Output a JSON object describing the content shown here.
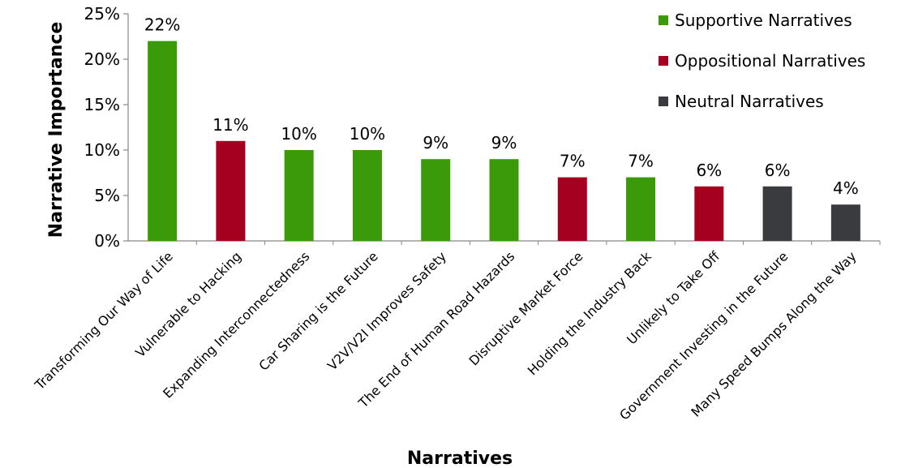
{
  "chart_data": {
    "type": "bar",
    "title": "",
    "xlabel": "Narratives",
    "ylabel": "Narrative Importance",
    "ylim": [
      0,
      25
    ],
    "yticks": [
      0,
      5,
      10,
      15,
      20,
      25
    ],
    "ytick_labels": [
      "0%",
      "5%",
      "10%",
      "15%",
      "20%",
      "25%"
    ],
    "grid": false,
    "legend_position": "top-right",
    "series": [
      {
        "name": "Supportive Narratives",
        "color": "#3a9a0a"
      },
      {
        "name": "Oppositional Narratives",
        "color": "#a5001f"
      },
      {
        "name": "Neutral Narratives",
        "color": "#3a3b3f"
      }
    ],
    "categories": [
      "Transforming Our Way of Life",
      "Vulnerable to Hacking",
      "Expanding Interconnectedness",
      "Car Sharing is the Future",
      "V2V/V2I Improves Safety",
      "The End of Human Road Hazards",
      "Disruptive Market Force",
      "Holding the Industry Back",
      "Unlikely to Take Off",
      "Government Investing in the Future",
      "Many Speed Bumps Along the Way"
    ],
    "values": [
      22,
      11,
      10,
      10,
      9,
      9,
      7,
      7,
      6,
      6,
      4
    ],
    "value_labels": [
      "22%",
      "11%",
      "10%",
      "10%",
      "9%",
      "9%",
      "7%",
      "7%",
      "6%",
      "6%",
      "4%"
    ],
    "series_index": [
      0,
      1,
      0,
      0,
      0,
      0,
      1,
      0,
      1,
      2,
      2
    ]
  }
}
